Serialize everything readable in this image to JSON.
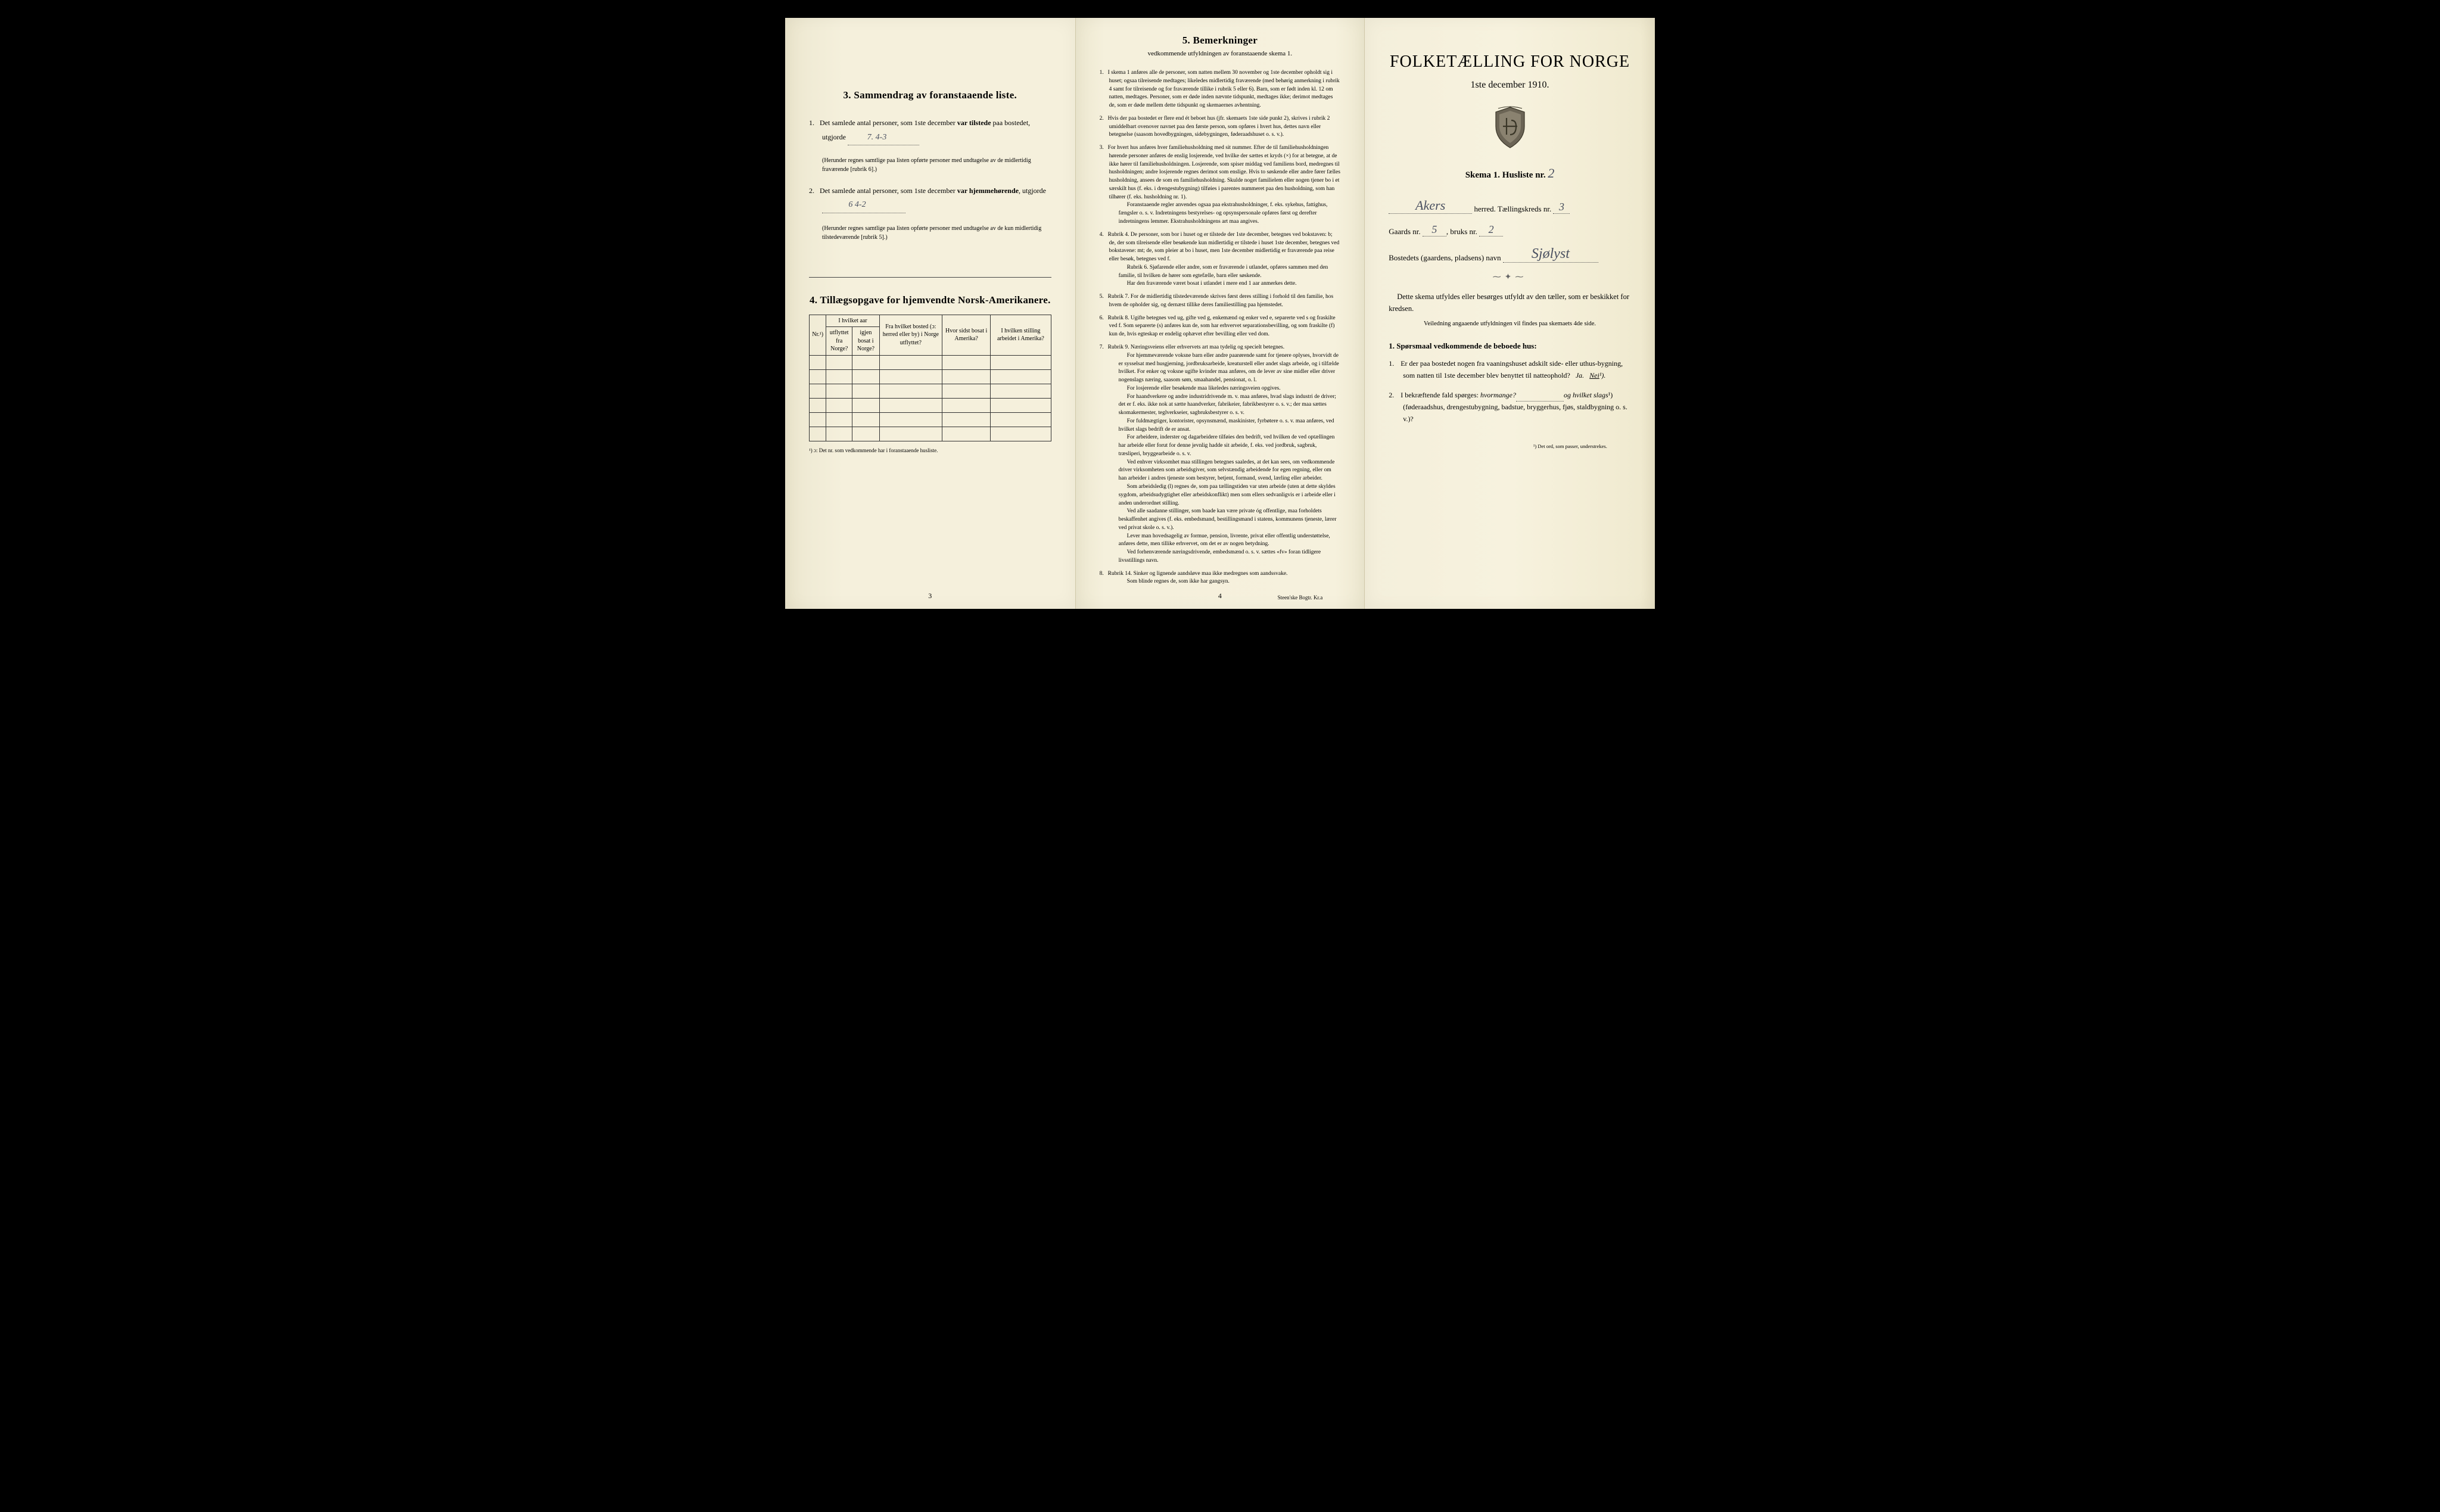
{
  "page1": {
    "section3": {
      "title": "3.   Sammendrag av foranstaaende liste.",
      "item1_pre": "Det samlede antal personer, som 1ste december ",
      "item1_bold": "var tilstede",
      "item1_post": " paa bostedet, utgjorde",
      "item1_fill": "7.    4-3",
      "item1_note": "(Herunder regnes samtlige paa listen opførte personer med undtagelse av de midlertidig fraværende [rubrik 6].)",
      "item2_pre": "Det samlede antal personer, som 1ste december ",
      "item2_bold": "var hjemmehørende",
      "item2_post": ", utgjorde",
      "item2_fill": "6       4-2",
      "item2_note": "(Herunder regnes samtlige paa listen opførte personer med undtagelse av de kun midlertidig tilstedeværende [rubrik 5].)"
    },
    "section4": {
      "title": "4.   Tillægsopgave for hjemvendte Norsk-Amerikanere.",
      "headers": [
        "Nr.¹)",
        "I hvilket aar utflyttet fra Norge?",
        "igjen bosat i Norge?",
        "Fra hvilket bosted (ɔ: herred eller by) i Norge utflyttet?",
        "Hvor sidst bosat i Amerika?",
        "I hvilken stilling arbeidet i Amerika?"
      ],
      "footnote": "¹) ɔ: Det nr. som vedkommende har i foranstaaende husliste.",
      "rows": 6
    },
    "page_number": "3"
  },
  "page2": {
    "title": "5.   Bemerkninger",
    "subtitle": "vedkommende utfyldningen av foranstaaende skema 1.",
    "items": [
      "I skema 1 anføres alle de personer, som natten mellem 30 november og 1ste december opholdt sig i huset; ogsaa tilreisende medtages; likeledes midlertidig fraværende (med behørig anmerkning i rubrik 4 samt for tilreisende og for fraværende tillike i rubrik 5 eller 6). Barn, som er født inden kl. 12 om natten, medtages. Personer, som er døde inden nævnte tidspunkt, medtages ikke; derimot medtages de, som er døde mellem dette tidspunkt og skemaernes avhentning.",
      "Hvis der paa bostedet er flere end ét beboet hus (jfr. skemaets 1ste side punkt 2), skrives i rubrik 2 umiddelbart ovenover navnet paa den første person, som opføres i hvert hus, dettes navn eller betegnelse (saasom hovedbygningen, sidebygningen, føderaadshuset o. s. v.).",
      "For hvert hus anføres hver familiehusholdning med sit nummer. Efter de til familiehusholdningen hørende personer anføres de enslig losjerende, ved hvilke der sættes et kryds (×) for at betegne, at de ikke hører til familiehusholdningen. Losjerende, som spiser middag ved familiens bord, medregnes til husholdningen; andre losjerende regnes derimot som enslige. Hvis to søskende eller andre fører fælles husholdning, ansees de som en familiehusholdning. Skulde noget familielem eller nogen tjener bo i et særskilt hus (f. eks. i drengestu­bygning) tilføies i parentes nummeret paa den husholdning, som han tilhører (f. eks. husholdning nr. 1).\n   Foranstaaende regler anvendes ogsaa paa ekstrahusholdninger, f. eks. syke­hus, fattighus, fængsler o. s. v. Indretningens bestyrelses- og opsynspersonale opføres først og derefter indretningens lemmer. Ekstrahusholdningens art maa angives.",
      "Rubrik 4. De personer, som bor i huset og er tilstede der 1ste december, betegnes ved bokstaven: b; de, der som tilreisende eller besøkende kun midlertidig er tilstede i huset 1ste december, betegnes ved bokstavene: mt; de, som pleier at bo i huset, men 1ste december midlertidig er fraværende paa reise eller besøk, betegnes ved f.\n   Rubrik 6. Sjøfarende eller andre, som er fraværende i utlandet, opføres sammen med den familie, til hvilken de hører som egtefælle, barn eller søskende.\n   Har den fraværende været bosat i utlandet i mere end 1 aar anmerkes dette.",
      "Rubrik 7. For de midlertidig tilstedeværende skrives først deres stilling i forhold til den familie, hos hvem de opholder sig, og dernæst tillike deres familiestilling paa hjemstedet.",
      "Rubrik 8. Ugifte betegnes ved ug, gifte ved g, enkemænd og enker ved e, separerte ved s og fraskilte ved f. Som separerte (s) anføres kun de, som har erhvervet separations­bevilling, og som fraskilte (f) kun de, hvis egteskap er endelig ophævet efter bevilling eller ved dom.",
      "Rubrik 9. Næringsveiens eller erhvervets art maa tydelig og specielt betegnes.\n   For hjemmeværende voksne barn eller andre paarørende samt for tjenere oplyses, hvor­vidt de er sysselsat med husgjerning, jordbruksarbeide, kreaturstell eller andet slags arbeide, og i tilfælde hvilket. For enker og voksne ugifte kvinder maa anføres, om de lever av sine midler eller driver nogenslags næring, saasom søm, smaahandel, pensionat, o. l.\n   For losjerende eller besøkende maa likeledes næringsveien opgives.\n   For haandverkere og andre industridrivende m. v. maa anføres, hvad slags industri de driver; det er f. eks. ikke nok at sætte haandverker, fabrikeier, fabrikbestyrer o. s. v.; der maa sættes skomakermester, teglverkseier, sagbruksbestyrer o. s. v.\n   For fuldmægtiger, kontorister, opsynsmænd, maskinister, fyrbøtere o. s. v. maa anføres, ved hvilket slags bedrift de er ansat.\n   For arbeidere, inderster og dagarbeidere tilføies den bedrift, ved hvilken de ved op­tællingen har arbeide eller forut for denne jevnlig hadde sit arbeide, f. eks. ved jordbruk, sagbruk, træsliperi, bryggearbeide o. s. v.\n   Ved enhver virksomhet maa stillingen betegnes saaledes, at det kan sees, om ved­kommende driver virksomheten som arbeidsgiver, som selvstændig arbeidende for egen regning, eller om han arbeider i andres tjeneste som bestyrer, betjent, formand, svend, lærling eller arbeider.\n   Som arbeidsledig (l) regnes de, som paa tællingstiden var uten arbeide (uten at dette skyldes sygdom, arbeidsudygtighet eller arbeidskonflikt) men som ellers sedvanligvis er i arbeide eller i anden underordnet stilling.\n   Ved alle saadanne stillinger, som baade kan være private óg offentlige, maa for­holdets beskaffenhet angives (f. eks. embedsmand, bestillingsmand i statens, kommunens tjeneste, lærer ved privat skole o. s. v.).\n   Lever man hovedsagelig av formue, pension, livrente, privat eller offentlig under­støttelse, anføres dette, men tillike erhvervet, om det er av nogen betydning.\n   Ved forhenværende næringsdrivende, embedsmænd o. s. v. sættes «fv» foran tidligere livsstillings navn.",
      "Rubrik 14. Sinker og lignende aandsløve maa ikke medregnes som aandssvake.\n   Som blinde regnes de, som ikke har gangsyn."
    ],
    "page_number": "4",
    "printer": "Steen'ske Bogtr.  Kr.a"
  },
  "page3": {
    "title": "FOLKETÆLLING FOR NORGE",
    "date": "1ste december 1910.",
    "skema_label": "Skema 1.  Husliste nr.",
    "husliste_nr": "2",
    "herred_value": "Akers",
    "herred_label": "herred.   Tællingskreds nr.",
    "kreds_nr": "3",
    "gaards_label": "Gaards nr.",
    "gaards_nr": "5",
    "bruks_label": "bruks nr.",
    "bruks_nr": "2",
    "bosted_label": "Bostedets (gaardens, pladsens) navn",
    "bosted_value": "Sjølyst",
    "instruction1": "Dette skema utfyldes eller besørges utfyldt av den tæller, som er beskikket for kredsen.",
    "instruction2": "Veiledning angaaende utfyldningen vil findes paa skemaets 4de side.",
    "q_title": "1. Spørsmaal vedkommende de beboede hus:",
    "q1": "Er der paa bostedet nogen fra vaaningshuset adskilt side- eller uthus-bygning, som natten til 1ste december blev benyttet til natteophold?   Ja.   Nei¹).",
    "q2": "I bekræftende fald spørges: hvormange?               og hvilket slags¹) (føderaadshus, drengestubygning, badstue, bryggerhus, fjøs, stald­bygning o. s. v.)?",
    "footnote": "¹) Det ord, som passer, understrekes."
  }
}
